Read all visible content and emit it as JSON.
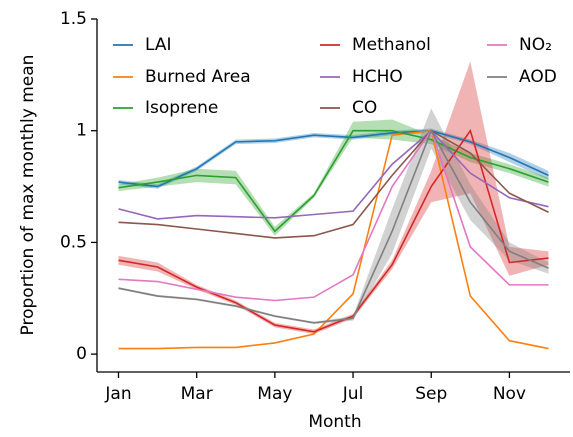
{
  "chart_data": {
    "type": "line",
    "x_label": "Month",
    "y_label": "Proportion of max monthly mean",
    "x": [
      1,
      2,
      3,
      4,
      5,
      6,
      7,
      8,
      9,
      10,
      11,
      12
    ],
    "xlim": [
      0.45,
      12.55
    ],
    "xticks": [
      {
        "value": 1,
        "label": "Jan"
      },
      {
        "value": 3,
        "label": "Mar"
      },
      {
        "value": 5,
        "label": "May"
      },
      {
        "value": 7,
        "label": "Jul"
      },
      {
        "value": 9,
        "label": "Sep"
      },
      {
        "value": 11,
        "label": "Nov"
      }
    ],
    "ylim": [
      -0.08,
      1.5
    ],
    "yticks": [
      0,
      0.5,
      1,
      1.5
    ],
    "legend": "upper left",
    "series": [
      {
        "name": "LAI",
        "color": "#1f77b4",
        "values": [
          0.77,
          0.75,
          0.83,
          0.95,
          0.955,
          0.98,
          0.97,
          0.99,
          1.0,
          0.95,
          0.88,
          0.8
        ],
        "lower": [
          0.76,
          0.74,
          0.82,
          0.94,
          0.945,
          0.97,
          0.96,
          0.98,
          0.99,
          0.94,
          0.86,
          0.78
        ],
        "upper": [
          0.78,
          0.76,
          0.84,
          0.96,
          0.965,
          0.99,
          0.98,
          1.0,
          1.01,
          0.96,
          0.9,
          0.82
        ]
      },
      {
        "name": "Burned Area",
        "color": "#ff7f0e",
        "values": [
          0.025,
          0.025,
          0.03,
          0.03,
          0.05,
          0.09,
          0.27,
          0.98,
          1.0,
          0.26,
          0.06,
          0.025
        ]
      },
      {
        "name": "Isoprene",
        "color": "#2ca02c",
        "values": [
          0.745,
          0.77,
          0.8,
          0.79,
          0.55,
          0.71,
          1.0,
          1.0,
          0.96,
          0.88,
          0.83,
          0.77
        ],
        "lower": [
          0.73,
          0.75,
          0.77,
          0.76,
          0.53,
          0.7,
          0.97,
          0.96,
          0.94,
          0.86,
          0.81,
          0.75
        ],
        "upper": [
          0.76,
          0.79,
          0.83,
          0.82,
          0.57,
          0.72,
          1.04,
          1.05,
          0.98,
          0.9,
          0.85,
          0.79
        ]
      },
      {
        "name": "Methanol",
        "color": "#d62728",
        "values": [
          0.42,
          0.39,
          0.3,
          0.23,
          0.13,
          0.1,
          0.17,
          0.4,
          0.75,
          1.0,
          0.41,
          0.43
        ],
        "lower": [
          0.4,
          0.37,
          0.29,
          0.22,
          0.12,
          0.09,
          0.16,
          0.38,
          0.68,
          0.72,
          0.35,
          0.4
        ],
        "upper": [
          0.44,
          0.41,
          0.31,
          0.24,
          0.14,
          0.11,
          0.18,
          0.42,
          0.82,
          1.31,
          0.48,
          0.46
        ]
      },
      {
        "name": "HCHO",
        "color": "#9467bd",
        "values": [
          0.65,
          0.605,
          0.62,
          0.615,
          0.61,
          0.625,
          0.64,
          0.85,
          1.0,
          0.81,
          0.7,
          0.66
        ]
      },
      {
        "name": "CO",
        "color": "#8c564b",
        "values": [
          0.59,
          0.58,
          0.56,
          0.54,
          0.52,
          0.53,
          0.58,
          0.8,
          1.0,
          0.9,
          0.72,
          0.635
        ]
      },
      {
        "name": "NO₂",
        "color": "#e377c2",
        "values": [
          0.335,
          0.325,
          0.29,
          0.255,
          0.24,
          0.255,
          0.355,
          0.75,
          1.0,
          0.48,
          0.31,
          0.31
        ]
      },
      {
        "name": "AOD",
        "color": "#7f7f7f",
        "values": [
          0.295,
          0.26,
          0.245,
          0.215,
          0.17,
          0.14,
          0.16,
          0.55,
          1.0,
          0.68,
          0.46,
          0.385
        ],
        "lower": [
          0.29,
          0.255,
          0.24,
          0.21,
          0.165,
          0.135,
          0.15,
          0.45,
          0.92,
          0.6,
          0.42,
          0.36
        ],
        "upper": [
          0.3,
          0.265,
          0.25,
          0.22,
          0.175,
          0.145,
          0.17,
          0.65,
          1.1,
          0.76,
          0.5,
          0.41
        ]
      }
    ]
  }
}
